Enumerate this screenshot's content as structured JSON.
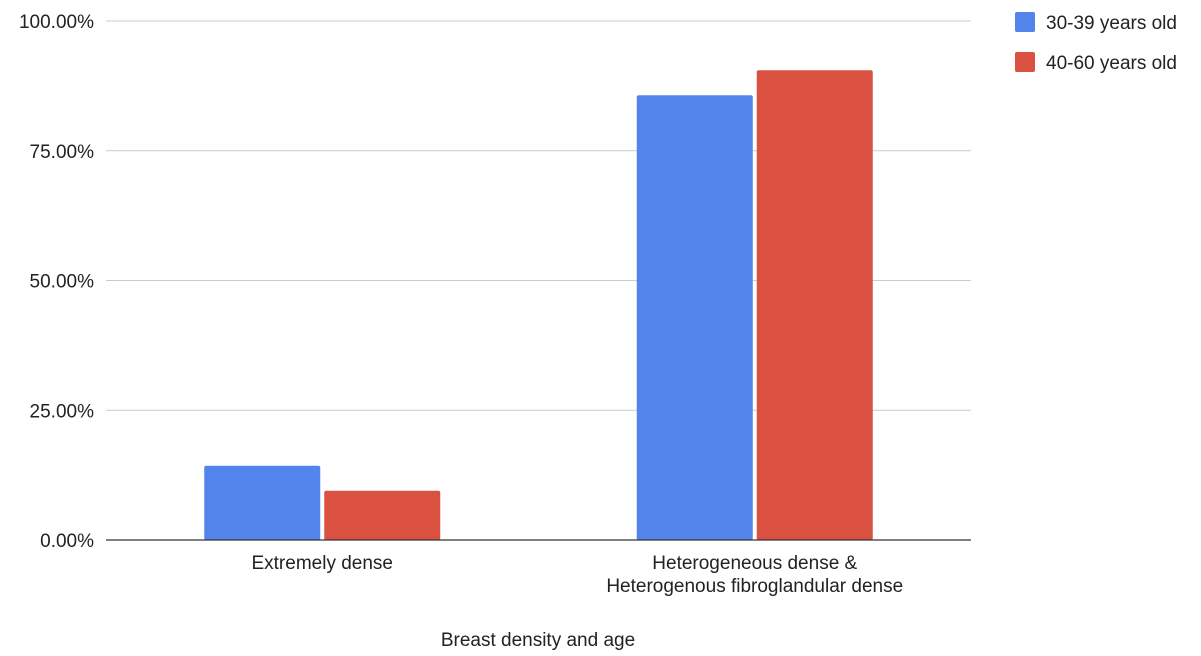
{
  "chart_data": {
    "type": "bar",
    "xlabel": "Breast density and age",
    "ylabel": "",
    "ylim": [
      0,
      100
    ],
    "y_ticks": [
      "0.00%",
      "25.00%",
      "50.00%",
      "75.00%",
      "100.00%"
    ],
    "y_tick_values": [
      0,
      25,
      50,
      75,
      100
    ],
    "grid": true,
    "legend_position": "top-right",
    "categories": [
      [
        "Extremely dense"
      ],
      [
        "Heterogeneous dense &",
        "Heterogenous fibroglandular dense"
      ]
    ],
    "series": [
      {
        "name": "30-39 years old",
        "color": "#5384ec",
        "values": [
          14.3,
          85.7
        ]
      },
      {
        "name": "40-60 years old",
        "color": "#da5141",
        "values": [
          9.5,
          90.5
        ]
      }
    ]
  }
}
